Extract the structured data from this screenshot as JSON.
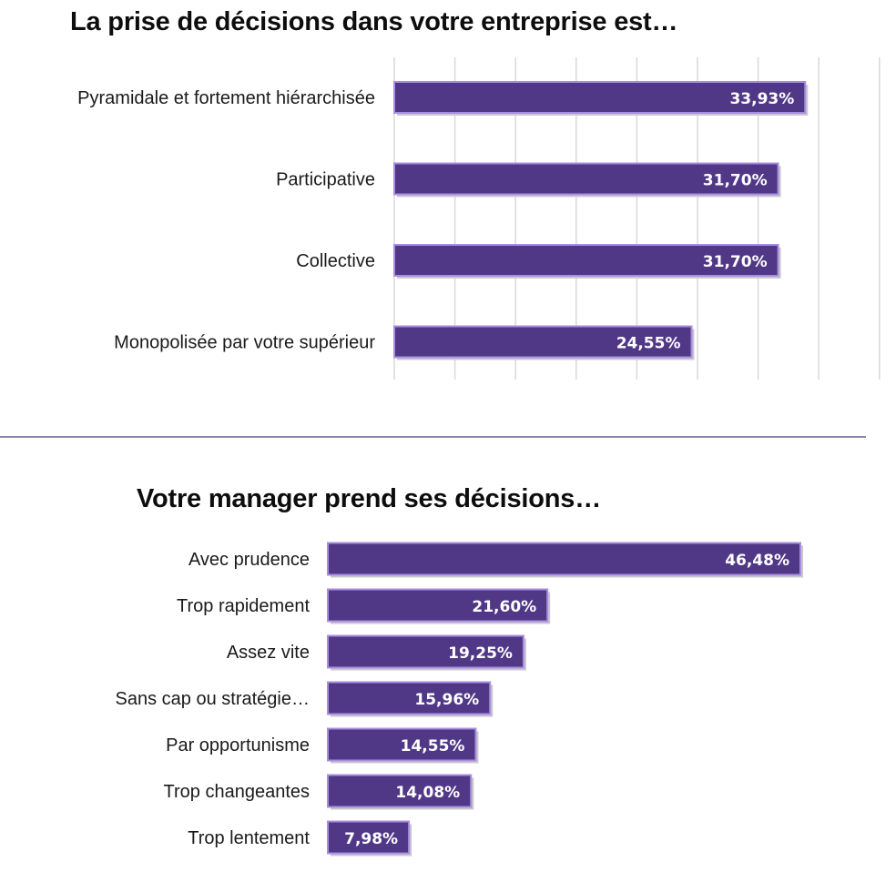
{
  "colors": {
    "bar_fill": "#513887",
    "bar_border": "#a98ee0",
    "text": "#111111",
    "gridline": "#d9d9d9",
    "divider": "#4a3a7a"
  },
  "chart_data": [
    {
      "type": "bar",
      "orientation": "horizontal",
      "title": "La prise de décisions dans votre entreprise est…",
      "categories": [
        "Pyramidale et fortement hiérarchisée",
        "Participative",
        "Collective",
        "Monopolisée par votre supérieur"
      ],
      "values": [
        33.93,
        31.7,
        31.7,
        24.55
      ],
      "value_labels": [
        "33,93%",
        "31,70%",
        "31,70%",
        "24,55%"
      ],
      "xlim": [
        0,
        40
      ],
      "grid": true,
      "unit": "%"
    },
    {
      "type": "bar",
      "orientation": "horizontal",
      "title": "Votre manager prend ses décisions…",
      "categories": [
        "Avec prudence",
        "Trop rapidement",
        "Assez vite",
        "Sans cap ou stratégie…",
        "Par opportunisme",
        "Trop changeantes",
        "Trop lentement"
      ],
      "values": [
        46.48,
        21.6,
        19.25,
        15.96,
        14.55,
        14.08,
        7.98
      ],
      "value_labels": [
        "46,48%",
        "21,60%",
        "19,25%",
        "15,96%",
        "14,55%",
        "14,08%",
        "7,98%"
      ],
      "xlim": [
        0,
        46.48
      ],
      "grid": false,
      "unit": "%"
    }
  ]
}
